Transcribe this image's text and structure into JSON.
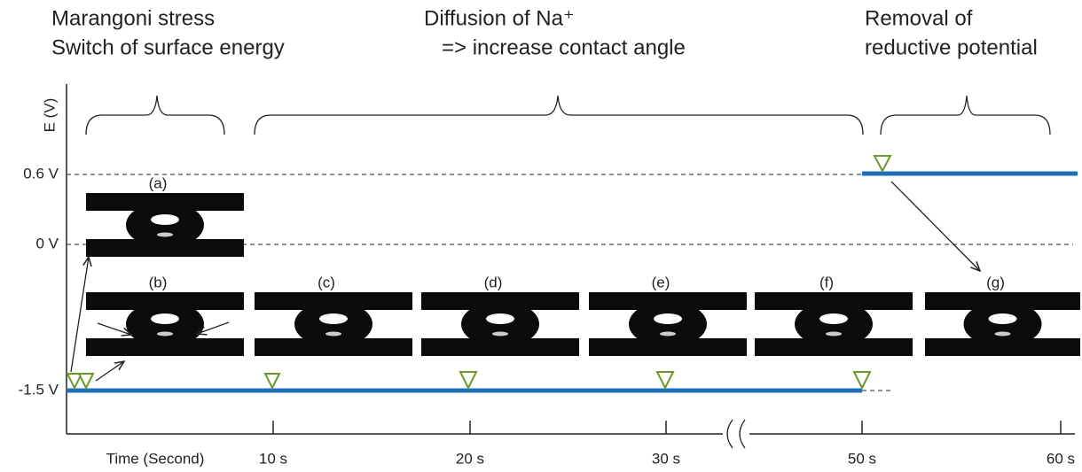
{
  "annotations": [
    {
      "lines": [
        "Marangoni stress",
        "Switch of surface energy"
      ]
    },
    {
      "lines": [
        "Diffusion of Na⁺",
        "=> increase contact angle"
      ]
    },
    {
      "lines": [
        "Removal of",
        "reductive potential"
      ]
    }
  ],
  "y_axis": {
    "label": "E (V)",
    "levels": [
      "0.6 V",
      "0 V",
      "-1.5 V"
    ]
  },
  "x_axis": {
    "label": "Time (Second)",
    "ticks": [
      "10 s",
      "20 s",
      "30 s",
      "50 s",
      "60 s"
    ]
  },
  "panels": [
    "(a)",
    "(b)",
    "(c)",
    "(d)",
    "(e)",
    "(f)",
    "(g)"
  ]
}
